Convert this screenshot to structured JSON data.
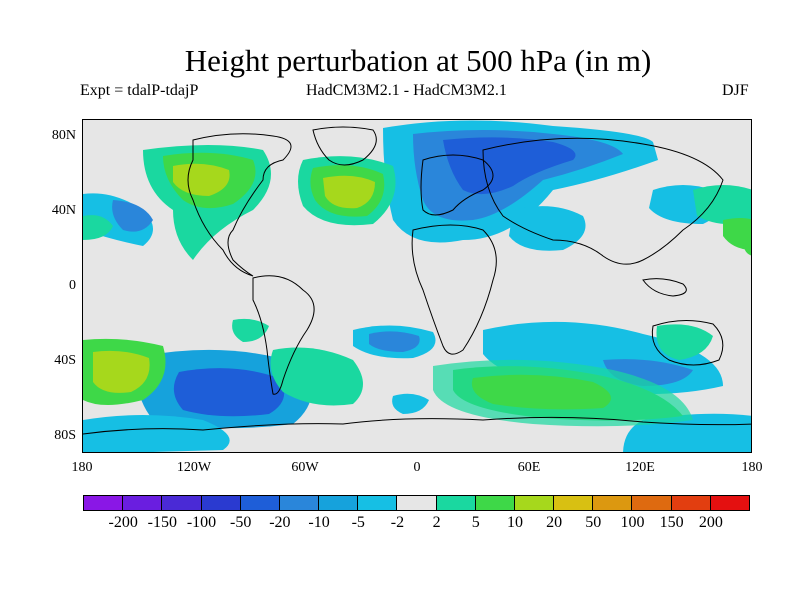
{
  "title": "Height perturbation at 500 hPa (in m)",
  "subtitle_left": "Expt = tdalP-tdajP",
  "subtitle_center": "HadCM3M2.1 - HadCM3M2.1",
  "subtitle_right": "DJF",
  "map": {
    "background_color": "#e6e6e6",
    "lat_ticks": [
      "80N",
      "40N",
      "0",
      "40S",
      "80S"
    ],
    "lon_ticks": [
      "180",
      "120W",
      "60W",
      "0",
      "60E",
      "120E",
      "180"
    ]
  },
  "colorbar": {
    "colors": [
      "#8a17e6",
      "#6a1ee0",
      "#4a2ad6",
      "#2a3ad0",
      "#1e5ed8",
      "#2a86da",
      "#16a2dc",
      "#16bfe4",
      "#e6e6e6",
      "#1ad8a0",
      "#3ed848",
      "#a6d81c",
      "#d8c012",
      "#dc9810",
      "#de6a10",
      "#e23e10",
      "#e41010"
    ],
    "labels": [
      "-200",
      "-150",
      "-100",
      "-50",
      "-20",
      "-10",
      "-5",
      "-2",
      "2",
      "5",
      "10",
      "20",
      "50",
      "100",
      "150",
      "200"
    ]
  }
}
